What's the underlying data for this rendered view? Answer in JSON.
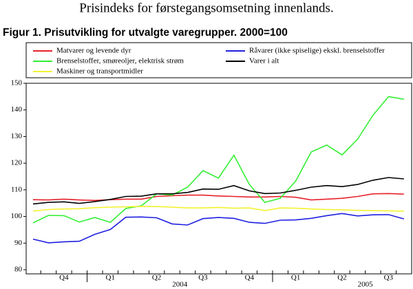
{
  "header": "Prisindeks for førstegangsomsetning innenlands.",
  "chart_data": {
    "type": "line",
    "title": "Figur 1. Prisutvikling for utvalgte varegrupper. 2000=100",
    "categories": [
      null,
      null,
      "Q4",
      null,
      null,
      "Q1",
      null,
      null,
      "Q2",
      null,
      null,
      "Q3",
      null,
      null,
      "Q4",
      null,
      null,
      "Q1",
      null,
      null,
      "Q2",
      null,
      null,
      "Q3",
      null
    ],
    "years": [
      "2004",
      "2005"
    ],
    "ylim": [
      80,
      150
    ],
    "yticks": [
      80,
      90,
      100,
      110,
      120,
      130,
      140,
      150
    ],
    "grid": false,
    "series": [
      {
        "name": "Matvarer og levende dyr",
        "color": "#e8202a",
        "values": [
          106.3,
          106.2,
          106.5,
          106.2,
          106.0,
          106.3,
          106.5,
          106.5,
          107.5,
          107.8,
          108.0,
          108.0,
          107.7,
          107.5,
          107.3,
          107.3,
          107.5,
          107.2,
          106.2,
          106.5,
          106.8,
          107.5,
          108.5,
          108.6,
          108.4
        ]
      },
      {
        "name": "Brenselstoffer, smøreoljer, elektrisk strøm",
        "color": "#33ee33",
        "values": [
          97.6,
          100.4,
          100.3,
          97.9,
          99.6,
          97.8,
          103.0,
          104.0,
          108.5,
          108.0,
          111.0,
          117.2,
          114.4,
          123.0,
          112.0,
          105.3,
          106.8,
          113.3,
          124.2,
          126.8,
          123.1,
          129.0,
          138.0,
          145.0,
          144.0
        ]
      },
      {
        "name": "Maskiner og transportmidler",
        "color": "#f2f230",
        "values": [
          102.0,
          102.6,
          102.8,
          102.9,
          103.3,
          103.5,
          103.6,
          103.8,
          103.7,
          103.5,
          103.2,
          103.2,
          103.4,
          103.1,
          103.2,
          102.2,
          103.2,
          103.1,
          102.8,
          102.6,
          102.5,
          102.3,
          102.2,
          102.1,
          102.0
        ]
      },
      {
        "name": "Råvarer (ikke spiselige) ekskl. brenselstoffer",
        "color": "#1f1fe0",
        "values": [
          91.5,
          90.1,
          90.5,
          90.7,
          93.3,
          95.1,
          99.7,
          99.8,
          99.5,
          97.2,
          96.8,
          99.2,
          99.6,
          99.3,
          97.8,
          97.4,
          98.6,
          98.7,
          99.3,
          100.3,
          101.1,
          100.2,
          100.6,
          100.7,
          99.1
        ]
      },
      {
        "name": "Varer i alt",
        "color": "#000000",
        "values": [
          104.7,
          105.3,
          105.5,
          104.9,
          105.6,
          106.4,
          107.5,
          107.6,
          108.5,
          108.5,
          109.0,
          110.3,
          110.2,
          111.6,
          109.6,
          108.6,
          108.8,
          109.8,
          111.0,
          111.6,
          111.2,
          112.0,
          113.6,
          114.6,
          114.1
        ]
      }
    ]
  }
}
